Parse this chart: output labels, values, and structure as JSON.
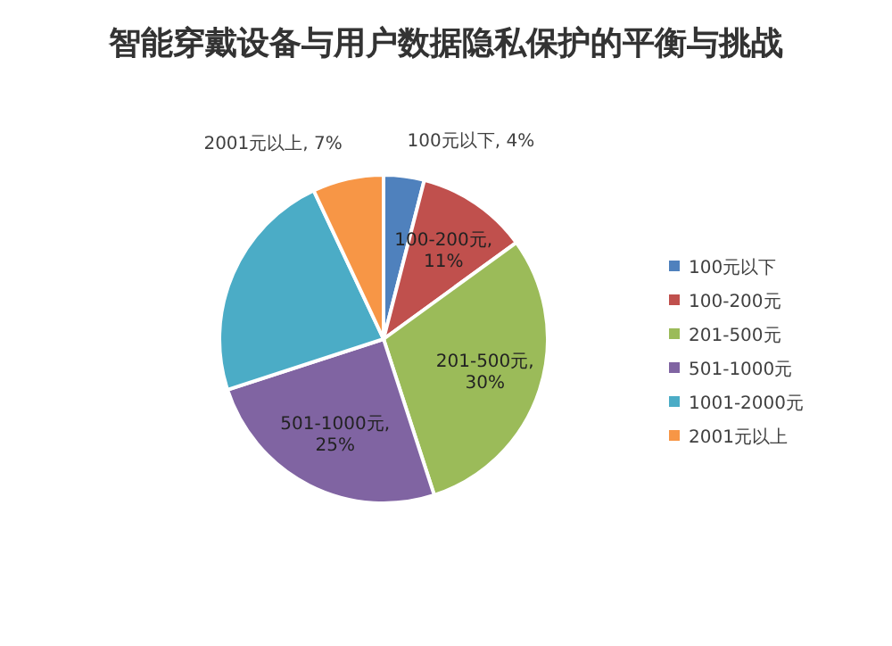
{
  "chart_data": {
    "type": "pie",
    "title": "智能穿戴设备与用户数据隐私保护的平衡与挑战",
    "categories": [
      "100元以下",
      "100-200元",
      "201-500元",
      "501-1000元",
      "1001-2000元",
      "2001元以上"
    ],
    "values": [
      4,
      11,
      30,
      25,
      23,
      7
    ],
    "colors": [
      "#4f81bd",
      "#c0504d",
      "#9bbb59",
      "#8064a2",
      "#4bacc6",
      "#f79646"
    ],
    "value_labels": [
      "100元以下, 4%",
      "100-200元, 11%",
      "201-500元, 30%",
      "501-1000元, 25%",
      null,
      "2001元以上, 7%"
    ],
    "legend": "right"
  }
}
